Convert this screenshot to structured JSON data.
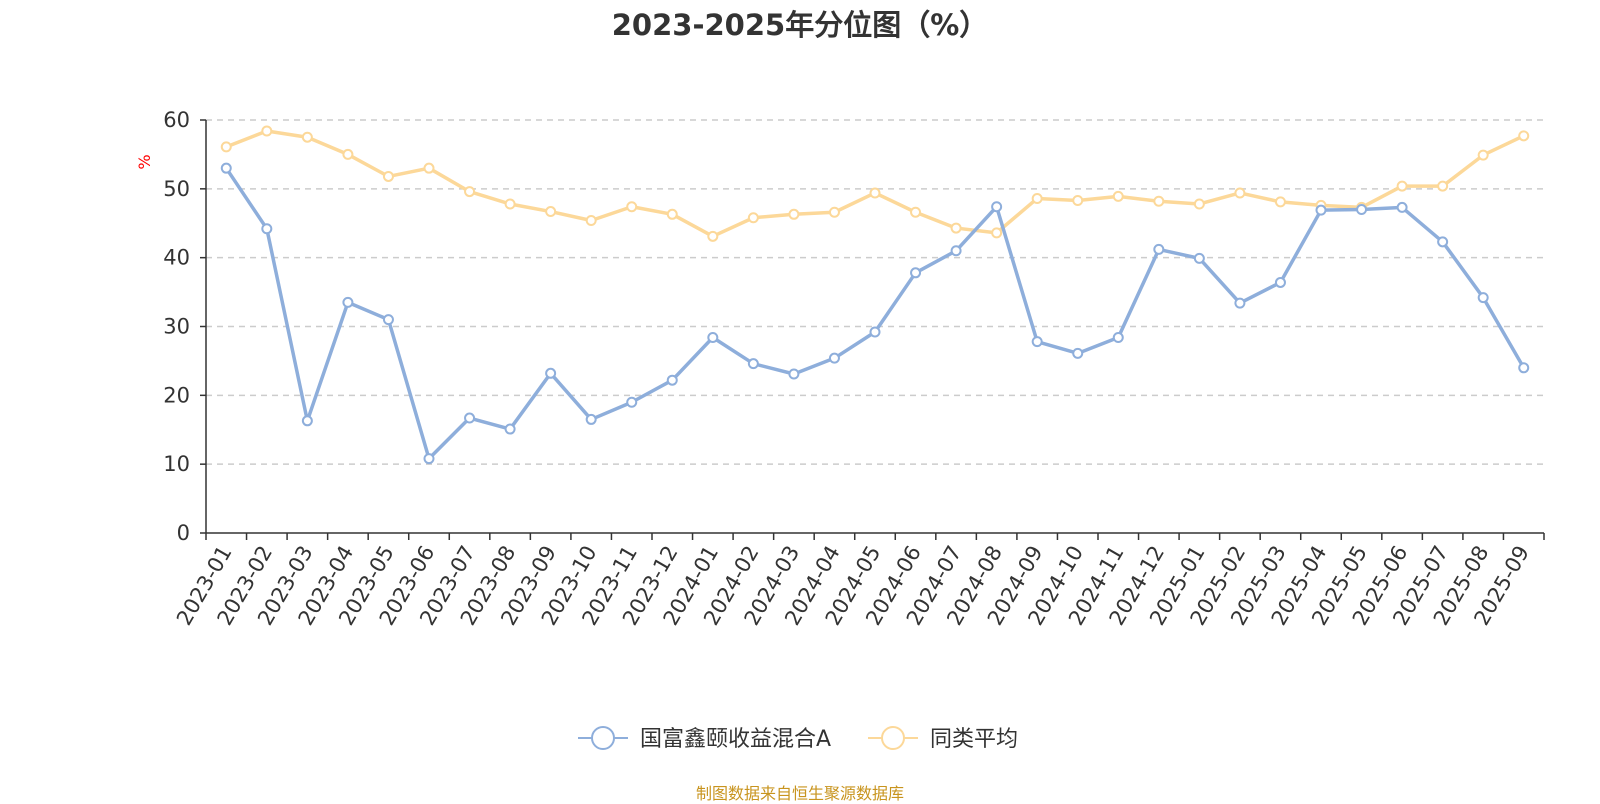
{
  "chart_data": {
    "type": "line",
    "title": "2023-2025年分位图（%）",
    "ylabel": "%",
    "ylim": [
      0,
      60
    ],
    "yticks": [
      0,
      10,
      20,
      30,
      40,
      50,
      60
    ],
    "grid": "horizontal dashed",
    "legend_position": "bottom-center",
    "categories": [
      "2023-01",
      "2023-02",
      "2023-03",
      "2023-04",
      "2023-05",
      "2023-06",
      "2023-07",
      "2023-08",
      "2023-09",
      "2023-10",
      "2023-11",
      "2023-12",
      "2024-01",
      "2024-02",
      "2024-03",
      "2024-04",
      "2024-05",
      "2024-06",
      "2024-07",
      "2024-08",
      "2024-09",
      "2024-10",
      "2024-11",
      "2024-12",
      "2025-01",
      "2025-02",
      "2025-03",
      "2025-04",
      "2025-05",
      "2025-06",
      "2025-07",
      "2025-08",
      "2025-09"
    ],
    "series": [
      {
        "name": "国富鑫颐收益混合A",
        "color": "#8eaedb",
        "values": [
          53.0,
          44.2,
          16.3,
          33.5,
          31.0,
          10.8,
          16.7,
          15.1,
          23.2,
          16.5,
          19.0,
          22.2,
          28.4,
          24.6,
          23.1,
          25.4,
          29.2,
          37.8,
          41.0,
          47.4,
          27.8,
          26.1,
          28.4,
          41.2,
          39.9,
          33.4,
          36.4,
          46.9,
          47.0,
          47.3,
          42.3,
          34.2,
          24.0
        ]
      },
      {
        "name": "同类平均",
        "color": "#fcd899",
        "values": [
          56.1,
          58.4,
          57.5,
          55.0,
          51.8,
          53.0,
          49.6,
          47.8,
          46.7,
          45.4,
          47.4,
          46.3,
          43.1,
          45.8,
          46.3,
          46.6,
          49.4,
          46.6,
          44.3,
          43.6,
          48.6,
          48.3,
          48.9,
          48.2,
          47.8,
          49.4,
          48.1,
          47.6,
          47.3,
          50.4,
          50.4,
          54.9,
          57.7
        ]
      }
    ]
  },
  "source_text": "制图数据来自恒生聚源数据库"
}
